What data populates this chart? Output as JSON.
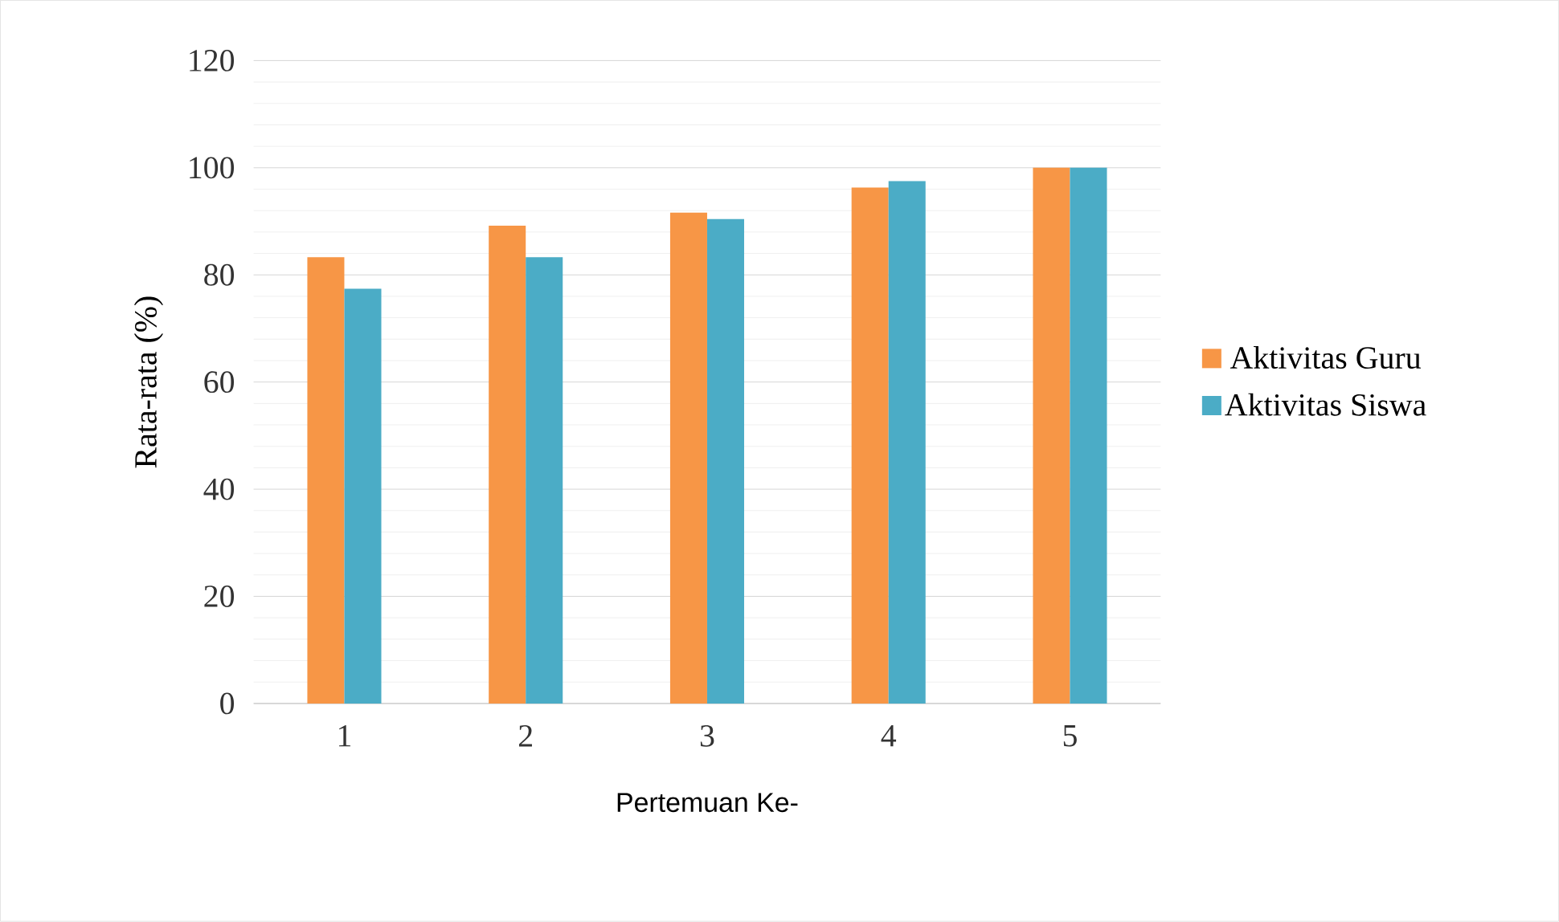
{
  "chart_data": {
    "type": "bar",
    "xlabel": "Pertemuan Ke-",
    "ylabel": "Rata-rata (%)",
    "categories": [
      "1",
      "2",
      "3",
      "4",
      "5"
    ],
    "series": [
      {
        "name": "Aktivitas Guru",
        "color": "#f79646",
        "values": [
          83.3,
          89.2,
          91.6,
          96.3,
          100
        ]
      },
      {
        "name": "Aktivitas Siswa",
        "color": "#4bacc6",
        "values": [
          77.4,
          83.3,
          90.4,
          97.5,
          100
        ]
      }
    ],
    "ylim": [
      0,
      120
    ],
    "yticks": [
      0,
      20,
      40,
      60,
      80,
      100,
      120
    ],
    "grid": "y",
    "legend": "right"
  }
}
